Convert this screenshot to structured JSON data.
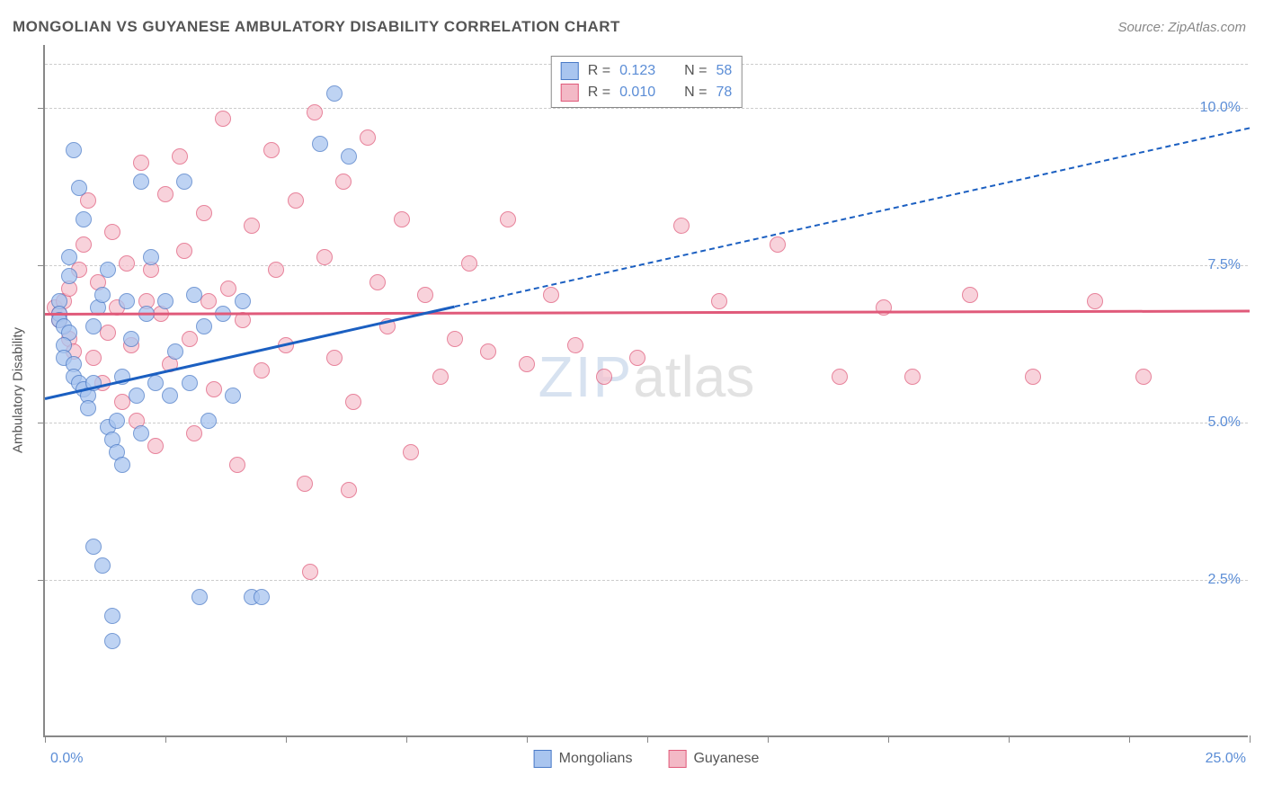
{
  "title": "MONGOLIAN VS GUYANESE AMBULATORY DISABILITY CORRELATION CHART",
  "source": "Source: ZipAtlas.com",
  "watermark_zip": "ZIP",
  "watermark_atlas": "atlas",
  "y_axis_label": "Ambulatory Disability",
  "axes": {
    "xlim": [
      0,
      25
    ],
    "ylim": [
      0,
      11
    ],
    "x_corner_min": "0.0%",
    "x_corner_max": "25.0%",
    "y_ticks": [
      {
        "v": 2.5,
        "label": "2.5%"
      },
      {
        "v": 5.0,
        "label": "5.0%"
      },
      {
        "v": 7.5,
        "label": "7.5%"
      },
      {
        "v": 10.0,
        "label": "10.0%"
      }
    ],
    "x_tick_positions": [
      0,
      2.5,
      5,
      7.5,
      10,
      12.5,
      15,
      17.5,
      20,
      22.5,
      25
    ],
    "grid_color": "#cccccc",
    "axis_color": "#888888",
    "tick_label_color": "#5b8dd6",
    "background_color": "#ffffff"
  },
  "legend_stats": {
    "rows": [
      {
        "swatch_fill": "#a9c5ef",
        "swatch_border": "#4a7ac7",
        "r_label": "R =",
        "r_value": "0.123",
        "n_label": "N =",
        "n_value": "58"
      },
      {
        "swatch_fill": "#f3b9c6",
        "swatch_border": "#e05a7a",
        "r_label": "R =",
        "r_value": "0.010",
        "n_label": "N =",
        "n_value": "78"
      }
    ]
  },
  "legend_series": [
    {
      "swatch_fill": "#a9c5ef",
      "swatch_border": "#4a7ac7",
      "label": "Mongolians"
    },
    {
      "swatch_fill": "#f3b9c6",
      "swatch_border": "#e05a7a",
      "label": "Guyanese"
    }
  ],
  "series": {
    "mongolians": {
      "fill": "#a9c5ef",
      "border": "#4a7ac7",
      "marker_radius": 9,
      "trend_color": "#1b5fc1",
      "trend": {
        "x1": 0,
        "y1": 5.4,
        "x2": 25,
        "y2": 9.7,
        "solid_until_x": 8.5
      },
      "points": [
        [
          0.3,
          6.9
        ],
        [
          0.3,
          6.7
        ],
        [
          0.3,
          6.6
        ],
        [
          0.4,
          6.5
        ],
        [
          0.5,
          6.4
        ],
        [
          0.4,
          6.2
        ],
        [
          0.4,
          6.0
        ],
        [
          0.5,
          7.6
        ],
        [
          0.5,
          7.3
        ],
        [
          0.6,
          9.3
        ],
        [
          0.7,
          8.7
        ],
        [
          0.8,
          8.2
        ],
        [
          0.6,
          5.9
        ],
        [
          0.6,
          5.7
        ],
        [
          0.7,
          5.6
        ],
        [
          0.8,
          5.5
        ],
        [
          0.9,
          5.4
        ],
        [
          0.9,
          5.2
        ],
        [
          1.0,
          5.6
        ],
        [
          1.0,
          6.5
        ],
        [
          1.1,
          6.8
        ],
        [
          1.2,
          7.0
        ],
        [
          1.3,
          7.4
        ],
        [
          1.3,
          4.9
        ],
        [
          1.4,
          4.7
        ],
        [
          1.5,
          4.5
        ],
        [
          1.6,
          4.3
        ],
        [
          1.5,
          5.0
        ],
        [
          1.6,
          5.7
        ],
        [
          1.7,
          6.9
        ],
        [
          1.8,
          6.3
        ],
        [
          1.9,
          5.4
        ],
        [
          2.0,
          4.8
        ],
        [
          2.0,
          8.8
        ],
        [
          2.1,
          6.7
        ],
        [
          2.2,
          7.6
        ],
        [
          2.3,
          5.6
        ],
        [
          2.5,
          6.9
        ],
        [
          2.6,
          5.4
        ],
        [
          2.7,
          6.1
        ],
        [
          2.9,
          8.8
        ],
        [
          3.0,
          5.6
        ],
        [
          3.1,
          7.0
        ],
        [
          3.3,
          6.5
        ],
        [
          3.4,
          5.0
        ],
        [
          3.7,
          6.7
        ],
        [
          3.9,
          5.4
        ],
        [
          4.1,
          6.9
        ],
        [
          4.3,
          2.2
        ],
        [
          4.5,
          2.2
        ],
        [
          1.0,
          3.0
        ],
        [
          1.2,
          2.7
        ],
        [
          1.4,
          1.9
        ],
        [
          1.4,
          1.5
        ],
        [
          3.2,
          2.2
        ],
        [
          5.7,
          9.4
        ],
        [
          6.0,
          10.2
        ],
        [
          6.3,
          9.2
        ]
      ]
    },
    "guyanese": {
      "fill": "#f6c3cf",
      "border": "#e05a7a",
      "marker_radius": 9,
      "trend_color": "#e05a7a",
      "trend": {
        "x1": 0,
        "y1": 6.75,
        "x2": 25,
        "y2": 6.8,
        "solid_until_x": 25
      },
      "points": [
        [
          0.2,
          6.8
        ],
        [
          0.3,
          6.7
        ],
        [
          0.3,
          6.6
        ],
        [
          0.4,
          6.9
        ],
        [
          0.5,
          7.1
        ],
        [
          0.5,
          6.3
        ],
        [
          0.6,
          6.1
        ],
        [
          0.7,
          7.4
        ],
        [
          0.8,
          7.8
        ],
        [
          0.9,
          8.5
        ],
        [
          1.0,
          6.0
        ],
        [
          1.1,
          7.2
        ],
        [
          1.2,
          5.6
        ],
        [
          1.3,
          6.4
        ],
        [
          1.4,
          8.0
        ],
        [
          1.5,
          6.8
        ],
        [
          1.6,
          5.3
        ],
        [
          1.7,
          7.5
        ],
        [
          1.8,
          6.2
        ],
        [
          1.9,
          5.0
        ],
        [
          2.0,
          9.1
        ],
        [
          2.1,
          6.9
        ],
        [
          2.2,
          7.4
        ],
        [
          2.3,
          4.6
        ],
        [
          2.4,
          6.7
        ],
        [
          2.5,
          8.6
        ],
        [
          2.6,
          5.9
        ],
        [
          2.8,
          9.2
        ],
        [
          2.9,
          7.7
        ],
        [
          3.0,
          6.3
        ],
        [
          3.1,
          4.8
        ],
        [
          3.3,
          8.3
        ],
        [
          3.4,
          6.9
        ],
        [
          3.5,
          5.5
        ],
        [
          3.7,
          9.8
        ],
        [
          3.8,
          7.1
        ],
        [
          4.0,
          4.3
        ],
        [
          4.1,
          6.6
        ],
        [
          4.3,
          8.1
        ],
        [
          4.5,
          5.8
        ],
        [
          4.7,
          9.3
        ],
        [
          4.8,
          7.4
        ],
        [
          5.0,
          6.2
        ],
        [
          5.2,
          8.5
        ],
        [
          5.4,
          4.0
        ],
        [
          5.6,
          9.9
        ],
        [
          5.8,
          7.6
        ],
        [
          6.0,
          6.0
        ],
        [
          6.2,
          8.8
        ],
        [
          6.4,
          5.3
        ],
        [
          6.7,
          9.5
        ],
        [
          6.9,
          7.2
        ],
        [
          7.1,
          6.5
        ],
        [
          7.4,
          8.2
        ],
        [
          7.6,
          4.5
        ],
        [
          7.9,
          7.0
        ],
        [
          8.2,
          5.7
        ],
        [
          8.5,
          6.3
        ],
        [
          8.8,
          7.5
        ],
        [
          9.2,
          6.1
        ],
        [
          9.6,
          8.2
        ],
        [
          10.0,
          5.9
        ],
        [
          10.5,
          7.0
        ],
        [
          11.0,
          6.2
        ],
        [
          11.6,
          5.7
        ],
        [
          12.3,
          6.0
        ],
        [
          13.2,
          8.1
        ],
        [
          14.0,
          6.9
        ],
        [
          15.2,
          7.8
        ],
        [
          16.5,
          5.7
        ],
        [
          17.4,
          6.8
        ],
        [
          18.0,
          5.7
        ],
        [
          19.2,
          7.0
        ],
        [
          20.5,
          5.7
        ],
        [
          21.8,
          6.9
        ],
        [
          22.8,
          5.7
        ],
        [
          5.5,
          2.6
        ],
        [
          6.3,
          3.9
        ]
      ]
    }
  }
}
